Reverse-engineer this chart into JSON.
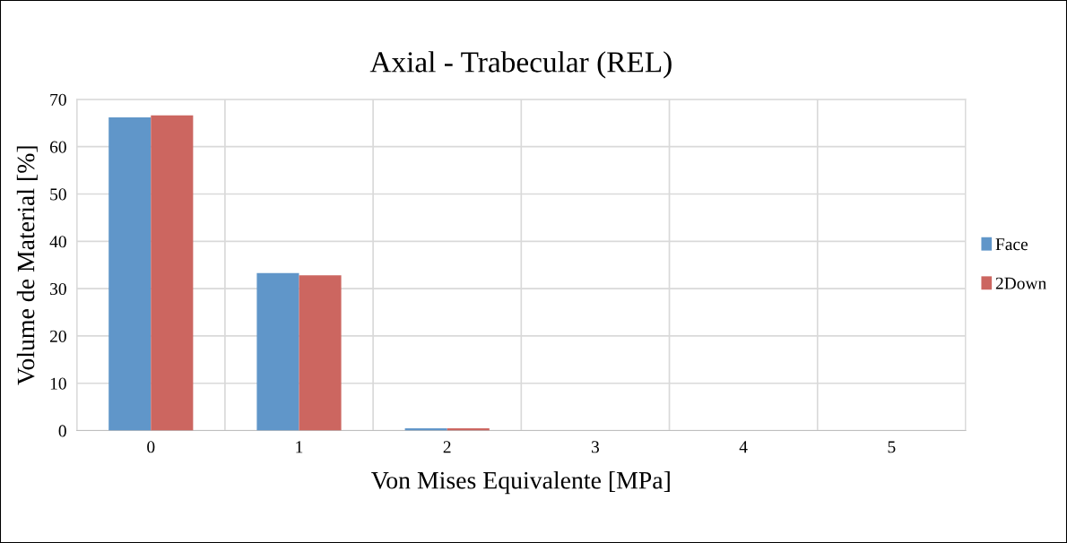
{
  "chart_data": {
    "type": "bar",
    "title": "Axial - Trabecular (REL)",
    "xlabel": "Von Mises Equivalente [MPa]",
    "ylabel": "Volume de Material [%]",
    "categories": [
      "0",
      "1",
      "2",
      "3",
      "4",
      "5"
    ],
    "series": [
      {
        "name": "Face",
        "color": "#6096c9",
        "values": [
          66.2,
          33.3,
          0.5,
          0,
          0,
          0
        ]
      },
      {
        "name": "2Down",
        "color": "#cc6660",
        "values": [
          66.6,
          32.8,
          0.5,
          0,
          0,
          0
        ]
      }
    ],
    "ylim": [
      0,
      70
    ],
    "yticks": [
      0,
      10,
      20,
      30,
      40,
      50,
      60,
      70
    ],
    "grid": true,
    "legend": "right"
  }
}
